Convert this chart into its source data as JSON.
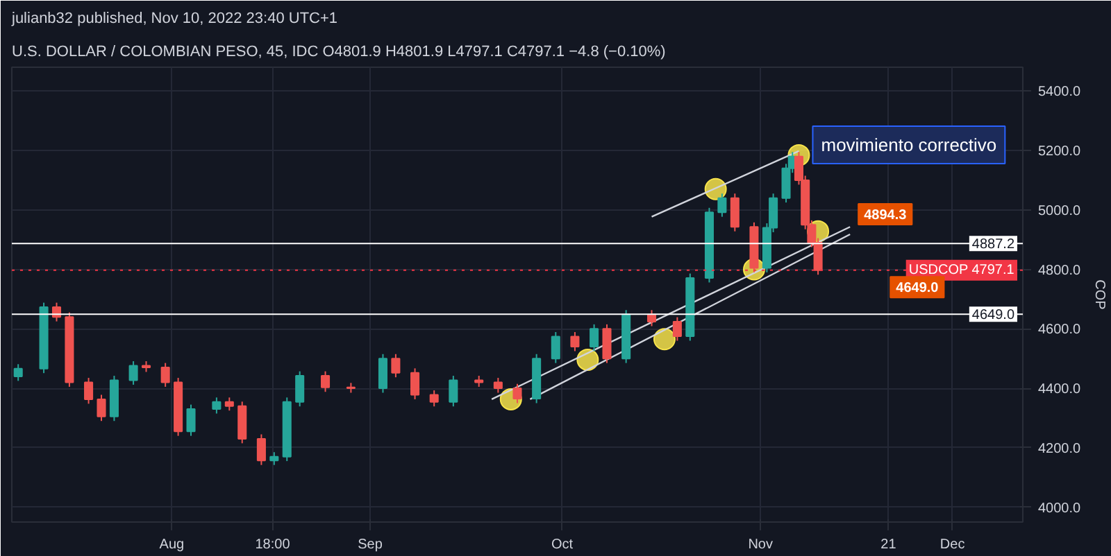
{
  "chart_data": {
    "type": "candlestick",
    "title": "julianb32 published, Nov 10, 2022 23:40 UTC+1",
    "subtitle": "U.S. DOLLAR / COLOMBIAN PESO, 45, IDC  O4801.9 H4801.9 L4797.1 C4797.1 −4.8 (−0.10%)",
    "ylabel": "COP",
    "x": [
      "2022-07-08",
      "2022-07-12",
      "2022-07-14",
      "2022-07-16",
      "2022-07-19",
      "2022-07-21",
      "2022-07-23",
      "2022-07-26",
      "2022-07-28",
      "2022-07-31",
      "2022-08-02",
      "2022-08-04",
      "2022-08-08",
      "2022-08-10",
      "2022-08-12",
      "2022-08-15",
      "2022-08-17",
      "2022-08-19",
      "2022-08-21",
      "2022-08-25",
      "2022-08-29",
      "2022-09-03",
      "2022-09-05",
      "2022-09-08",
      "2022-09-11",
      "2022-09-14",
      "2022-09-18",
      "2022-09-21",
      "2022-09-24",
      "2022-09-27",
      "2022-09-30",
      "2022-10-03",
      "2022-10-06",
      "2022-10-08",
      "2022-10-11",
      "2022-10-15",
      "2022-10-19",
      "2022-10-21",
      "2022-10-24",
      "2022-10-26",
      "2022-10-28",
      "2022-10-31",
      "2022-11-02",
      "2022-11-03",
      "2022-11-05",
      "2022-11-06",
      "2022-11-07",
      "2022-11-08",
      "2022-11-09",
      "2022-11-10"
    ],
    "ohlc": [
      [
        4440,
        4481,
        4425,
        4466
      ],
      [
        4466,
        4688,
        4451,
        4673
      ],
      [
        4673,
        4688,
        4625,
        4640
      ],
      [
        4640,
        4655,
        4405,
        4420
      ],
      [
        4420,
        4435,
        4348,
        4363
      ],
      [
        4363,
        4378,
        4290,
        4305
      ],
      [
        4305,
        4442,
        4290,
        4427
      ],
      [
        4427,
        4491,
        4412,
        4476
      ],
      [
        4476,
        4491,
        4455,
        4470
      ],
      [
        4470,
        4485,
        4405,
        4420
      ],
      [
        4420,
        4435,
        4240,
        4255
      ],
      [
        4255,
        4345,
        4240,
        4330
      ],
      [
        4330,
        4369,
        4315,
        4354
      ],
      [
        4354,
        4369,
        4325,
        4340
      ],
      [
        4340,
        4355,
        4215,
        4230
      ],
      [
        4230,
        4245,
        4142,
        4157
      ],
      [
        4157,
        4185,
        4142,
        4170
      ],
      [
        4170,
        4369,
        4155,
        4354
      ],
      [
        4354,
        4457,
        4339,
        4442
      ],
      [
        4442,
        4457,
        4388,
        4403
      ],
      [
        4403,
        4418,
        4385,
        4400
      ],
      [
        4400,
        4515,
        4385,
        4500
      ],
      [
        4500,
        4515,
        4437,
        4452
      ],
      [
        4452,
        4467,
        4363,
        4378
      ],
      [
        4378,
        4393,
        4339,
        4354
      ],
      [
        4354,
        4442,
        4339,
        4427
      ],
      [
        4427,
        4442,
        4405,
        4420
      ],
      [
        4420,
        4435,
        4385,
        4400
      ],
      [
        4400,
        4415,
        4350,
        4365
      ],
      [
        4365,
        4515,
        4350,
        4500
      ],
      [
        4500,
        4589,
        4485,
        4574
      ],
      [
        4574,
        4589,
        4525,
        4540
      ],
      [
        4540,
        4615,
        4525,
        4600
      ],
      [
        4600,
        4615,
        4485,
        4500
      ],
      [
        4500,
        4663,
        4485,
        4648
      ],
      [
        4648,
        4663,
        4609,
        4624
      ],
      [
        4624,
        4639,
        4560,
        4575
      ],
      [
        4575,
        4786,
        4560,
        4771
      ],
      [
        4771,
        5007,
        4756,
        4992
      ],
      [
        4992,
        5055,
        4977,
        5040
      ],
      [
        5040,
        5055,
        4928,
        4943
      ],
      [
        4943,
        4958,
        4790,
        4805
      ],
      [
        4805,
        4955,
        4790,
        4940
      ],
      [
        4940,
        5055,
        4925,
        5040
      ],
      [
        5040,
        5155,
        5025,
        5140
      ],
      [
        5140,
        5195,
        5125,
        5180
      ],
      [
        5180,
        5195,
        5085,
        5100
      ],
      [
        5100,
        5115,
        4935,
        4950
      ],
      [
        4950,
        4965,
        4875,
        4890
      ],
      [
        4890,
        4905,
        4782.1,
        4797.1
      ]
    ],
    "colors": [
      "#26a69a",
      "#26a69a",
      "#ef5350",
      "#ef5350",
      "#ef5350",
      "#ef5350",
      "#26a69a",
      "#26a69a",
      "#ef5350",
      "#ef5350",
      "#ef5350",
      "#26a69a",
      "#26a69a",
      "#ef5350",
      "#ef5350",
      "#ef5350",
      "#26a69a",
      "#26a69a",
      "#26a69a",
      "#ef5350",
      "#ef5350",
      "#26a69a",
      "#ef5350",
      "#ef5350",
      "#ef5350",
      "#26a69a",
      "#ef5350",
      "#ef5350",
      "#ef5350",
      "#26a69a",
      "#26a69a",
      "#ef5350",
      "#26a69a",
      "#ef5350",
      "#26a69a",
      "#ef5350",
      "#ef5350",
      "#26a69a",
      "#26a69a",
      "#26a69a",
      "#ef5350",
      "#ef5350",
      "#26a69a",
      "#26a69a",
      "#26a69a",
      "#26a69a",
      "#ef5350",
      "#ef5350",
      "#ef5350",
      "#ef5350"
    ],
    "series": [
      {
        "type": "line",
        "color": "#d1d4dc",
        "x": [
          "2022-10-15",
          "2022-11-07"
        ],
        "values": [
          4977,
          5198
        ]
      },
      {
        "type": "line",
        "color": "#d1d4dc",
        "x": [
          "2022-09-20",
          "2022-11-15"
        ],
        "values": [
          4363,
          4943
        ]
      },
      {
        "type": "line",
        "color": "#d1d4dc",
        "x": [
          "2022-09-26",
          "2022-11-15"
        ],
        "values": [
          4363,
          4918
        ]
      },
      {
        "type": "scatter",
        "color": "#f7e34b",
        "marker": "circle",
        "x": [
          "2022-09-23",
          "2022-10-05",
          "2022-10-17",
          "2022-10-25",
          "2022-10-31",
          "2022-11-07",
          "2022-11-10"
        ],
        "values": [
          4363,
          4496,
          4565,
          5070,
          4800,
          5184,
          4928
        ]
      }
    ],
    "xlim": [
      "2022-07-07",
      "2022-12-12"
    ],
    "xticks": [
      {
        "value": "2022-08-01",
        "label": "Aug"
      },
      {
        "value": "2022-08-16T18:00",
        "label": "18:00"
      },
      {
        "value": "2022-09-01",
        "label": "Sep"
      },
      {
        "value": "2022-10-01",
        "label": "Oct"
      },
      {
        "value": "2022-11-01",
        "label": "Nov"
      },
      {
        "value": "2022-11-21",
        "label": "21"
      },
      {
        "value": "2022-12-01",
        "label": "Dec"
      }
    ],
    "ylim": [
      3950,
      5480
    ],
    "yticks": [
      {
        "value": 4000,
        "label": "4000.0"
      },
      {
        "value": 4200,
        "label": "4200.0"
      },
      {
        "value": 4400,
        "label": "4400.0"
      },
      {
        "value": 4600,
        "label": "4600.0"
      },
      {
        "value": 4800,
        "label": "4800.0"
      },
      {
        "value": 5000,
        "label": "5000.0"
      },
      {
        "value": 5200,
        "label": "5200.0"
      },
      {
        "value": 5400,
        "label": "5400.0"
      }
    ],
    "ref_lines": [
      {
        "axis": "y",
        "value": 4887.2,
        "label": "4887.2",
        "color": "#ffffff",
        "line_style": "solid"
      },
      {
        "axis": "y",
        "value": 4649.0,
        "label": "4649.0",
        "color": "#ffffff",
        "line_style": "solid"
      },
      {
        "axis": "y",
        "value": 4797.1,
        "label": "USDCOP 4797.1",
        "color": "#f23645",
        "line_style": "dotted"
      }
    ],
    "annotations": [
      {
        "text": "movimiento correctivo",
        "x": "2022-11-07",
        "y": 5184
      },
      {
        "text": "4894.3",
        "x": "2022-11-15",
        "y": 4894.3
      },
      {
        "text": "4649.0",
        "x": "2022-11-20",
        "y": 4649.0
      }
    ],
    "grid": true
  }
}
